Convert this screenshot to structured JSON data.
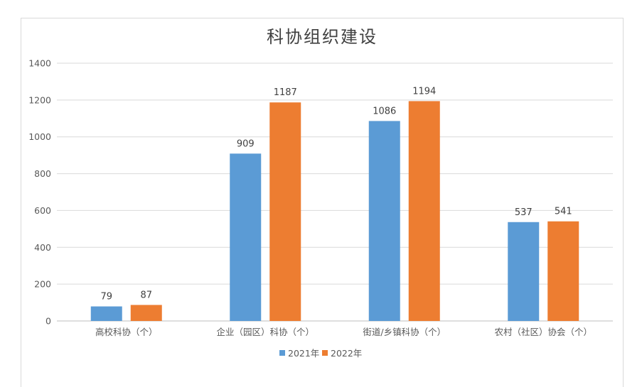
{
  "chart_data": {
    "type": "bar",
    "title": "科协组织建设",
    "categories": [
      "高校科协（个）",
      "企业（园区）科协（个）",
      "街道/乡镇科协（个）",
      "农村（社区）协会（个）"
    ],
    "series": [
      {
        "name": "2021年",
        "values": [
          79,
          909,
          1086,
          537
        ],
        "color": "#5b9bd5"
      },
      {
        "name": "2022年",
        "values": [
          87,
          1187,
          1194,
          541
        ],
        "color": "#ed7d31"
      }
    ],
    "ylim": [
      0,
      1400
    ],
    "yticks": [
      0,
      200,
      400,
      600,
      800,
      1000,
      1200,
      1400
    ],
    "grid": true,
    "legend": "bottom",
    "data_labels": true
  }
}
